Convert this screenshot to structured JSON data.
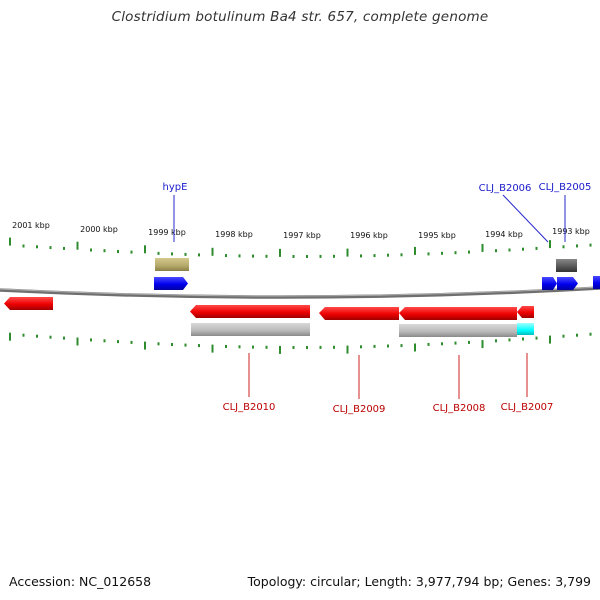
{
  "title": "Clostridium botulinum Ba4 str. 657, complete genome",
  "footer": {
    "accession": "Accession: NC_012658",
    "topology": "Topology: circular; Length: 3,977,794 bp; Genes: 3,799"
  },
  "ruler_labels": [
    "2001 kbp",
    "2000 kbp",
    "1999 kbp",
    "1998 kbp",
    "1997 kbp",
    "1996 kbp",
    "1995 kbp",
    "1994 kbp",
    "1993 kbp"
  ],
  "gene_labels_top": [
    "hypE",
    "CLJ_B2006",
    "CLJ_B2005"
  ],
  "gene_labels_bottom": [
    "CLJ_B2010",
    "CLJ_B2009",
    "CLJ_B2008",
    "CLJ_B2007"
  ],
  "colors": {
    "forward_gene": "#0000ee",
    "reverse_gene": "#ee0000",
    "tick": "#2e8b2e",
    "backbone": "#808080",
    "top_label": "#1a1acc",
    "bottom_label": "#bb0000",
    "feature_olive": "#b5a96a",
    "feature_dark": "#555555",
    "feature_gray": "#bbbbbb",
    "feature_cyan": "#00ffff"
  }
}
